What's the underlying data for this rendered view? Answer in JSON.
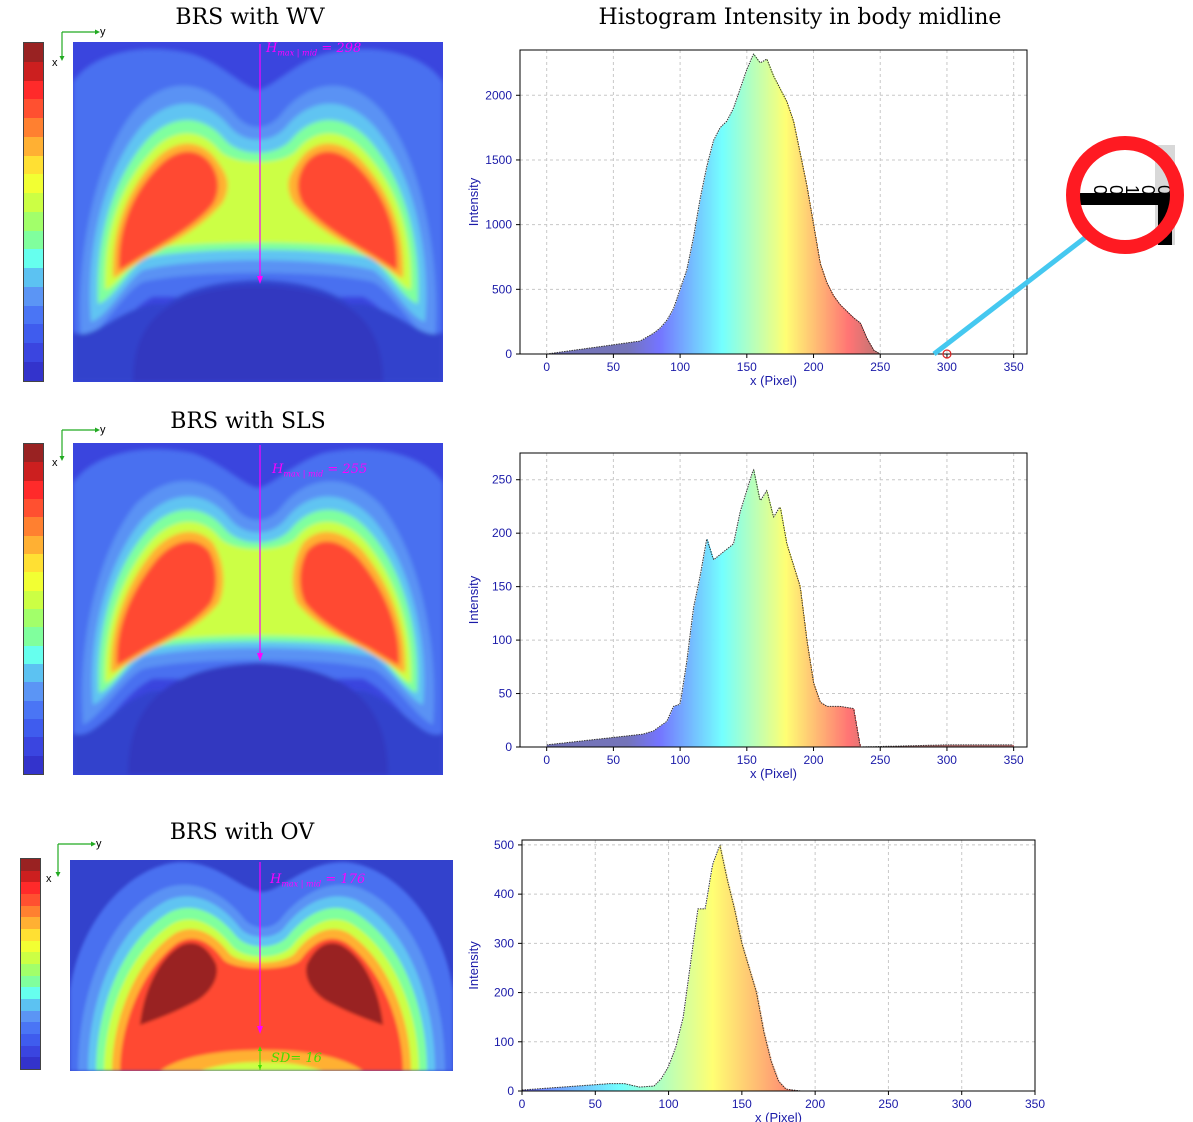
{
  "titles": {
    "wv": "BRS with WV",
    "sls": "BRS with SLS",
    "ov": "BRS with OV",
    "hist": "Histogram Intensity in body midline"
  },
  "axis_indicator": {
    "x": "x",
    "y": "y"
  },
  "annotations": {
    "wv_hmax": "H",
    "wv_hmax_sub": "max | mid",
    "wv_hmax_val": "= 298",
    "sls_hmax": "H",
    "sls_hmax_sub": "max | mid",
    "sls_hmax_val": "= 255",
    "ov_hmax": "H",
    "ov_hmax_sub": "max | mid",
    "ov_hmax_val": "= 176",
    "ov_sd": "SD= 16"
  },
  "zoom_digits": [
    "0",
    "0",
    "1",
    "0",
    "0"
  ],
  "colors": {
    "accent_magenta": "#ff00ff",
    "sd_green": "#44dd00",
    "zoom_ring": "#ff1a22",
    "zoom_line": "#45c8f0",
    "colorbar": [
      "#3333cc",
      "#3a45e0",
      "#3f5cee",
      "#4a75f5",
      "#5b95f5",
      "#5cc2f2",
      "#66ffee",
      "#80ff9d",
      "#a2ff6a",
      "#ccff44",
      "#f2ff33",
      "#ffe033",
      "#ffb033",
      "#ff8030",
      "#ff5030",
      "#ff2a2a",
      "#cc1f1f",
      "#992222"
    ]
  },
  "chart_data": [
    {
      "type": "bar",
      "title": "Histogram Intensity in body midline",
      "xlabel": "x (Pixel)",
      "ylabel": "Intensity",
      "xlim": [
        -20,
        360
      ],
      "ylim": [
        0,
        2350
      ],
      "xticks": [
        0,
        50,
        100,
        150,
        200,
        250,
        300,
        350
      ],
      "yticks": [
        0,
        500,
        1000,
        1500,
        2000
      ],
      "grid": true,
      "x": [
        0,
        70,
        75,
        80,
        85,
        90,
        95,
        100,
        105,
        110,
        115,
        120,
        125,
        130,
        135,
        140,
        145,
        150,
        155,
        160,
        165,
        170,
        175,
        180,
        185,
        190,
        195,
        200,
        205,
        210,
        215,
        220,
        225,
        230,
        235,
        240,
        245,
        250,
        300
      ],
      "values": [
        0,
        100,
        130,
        160,
        200,
        260,
        350,
        500,
        650,
        900,
        1200,
        1450,
        1650,
        1750,
        1800,
        1900,
        2050,
        2200,
        2320,
        2250,
        2280,
        2150,
        2050,
        1950,
        1800,
        1550,
        1300,
        1000,
        700,
        550,
        450,
        380,
        330,
        280,
        240,
        120,
        30,
        0,
        0
      ],
      "annotations": [
        "circle marker at x=300, y=0"
      ]
    },
    {
      "type": "bar",
      "title": "",
      "xlabel": "x (Pixel)",
      "ylabel": "Intensity",
      "xlim": [
        -20,
        360
      ],
      "ylim": [
        0,
        275
      ],
      "xticks": [
        0,
        50,
        100,
        150,
        200,
        250,
        300,
        350
      ],
      "yticks": [
        0,
        50,
        100,
        150,
        200,
        250
      ],
      "grid": true,
      "x": [
        0,
        72,
        80,
        90,
        95,
        100,
        105,
        110,
        115,
        120,
        125,
        130,
        135,
        140,
        145,
        150,
        155,
        160,
        165,
        170,
        175,
        180,
        185,
        190,
        195,
        200,
        205,
        210,
        215,
        220,
        225,
        230,
        235,
        300,
        350
      ],
      "values": [
        2,
        12,
        15,
        24,
        38,
        40,
        80,
        130,
        160,
        195,
        175,
        180,
        185,
        190,
        220,
        240,
        260,
        230,
        240,
        215,
        225,
        190,
        170,
        150,
        100,
        60,
        42,
        38,
        38,
        38,
        37,
        36,
        0,
        2,
        2
      ]
    },
    {
      "type": "bar",
      "title": "",
      "xlabel": "x (Pixel)",
      "ylabel": "Intensity",
      "xlim": [
        0,
        350
      ],
      "ylim": [
        0,
        510
      ],
      "xticks": [
        0,
        50,
        100,
        150,
        200,
        250,
        300,
        350
      ],
      "yticks": [
        0,
        100,
        200,
        300,
        400,
        500
      ],
      "grid": true,
      "x": [
        0,
        60,
        70,
        80,
        90,
        95,
        100,
        105,
        110,
        115,
        120,
        125,
        130,
        135,
        140,
        145,
        150,
        155,
        160,
        165,
        170,
        175,
        180,
        190,
        350
      ],
      "values": [
        2,
        15,
        15,
        8,
        10,
        25,
        50,
        90,
        150,
        260,
        370,
        370,
        460,
        500,
        430,
        370,
        300,
        250,
        200,
        120,
        60,
        20,
        4,
        0,
        0
      ]
    }
  ]
}
